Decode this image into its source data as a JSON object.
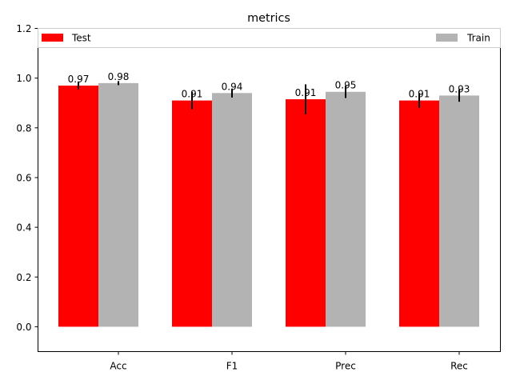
{
  "chart_data": {
    "type": "bar",
    "title": "metrics",
    "xlabel": "",
    "ylabel": "",
    "categories": [
      "Acc",
      "F1",
      "Prec",
      "Rec"
    ],
    "ylim": [
      -0.1,
      1.2
    ],
    "yticks": [
      0.0,
      0.2,
      0.4,
      0.6,
      0.8,
      1.0,
      1.2
    ],
    "ytick_labels": [
      "0.0",
      "0.2",
      "0.4",
      "0.6",
      "0.8",
      "1.0",
      "1.2"
    ],
    "grid": false,
    "legend": {
      "placement": "top",
      "entries": [
        "Test",
        "Train"
      ]
    },
    "series": [
      {
        "name": "Test",
        "color": "#ff0000",
        "values": [
          0.97,
          0.91,
          0.915,
          0.91
        ],
        "errors": [
          0.015,
          0.035,
          0.06,
          0.03
        ],
        "labels": [
          "0.97",
          "0.91",
          "0.91",
          "0.91"
        ]
      },
      {
        "name": "Train",
        "color": "#b3b3b3",
        "values": [
          0.98,
          0.94,
          0.945,
          0.93
        ],
        "errors": [
          0.008,
          0.018,
          0.025,
          0.025
        ],
        "labels": [
          "0.98",
          "0.94",
          "0.95",
          "0.93"
        ]
      }
    ]
  }
}
